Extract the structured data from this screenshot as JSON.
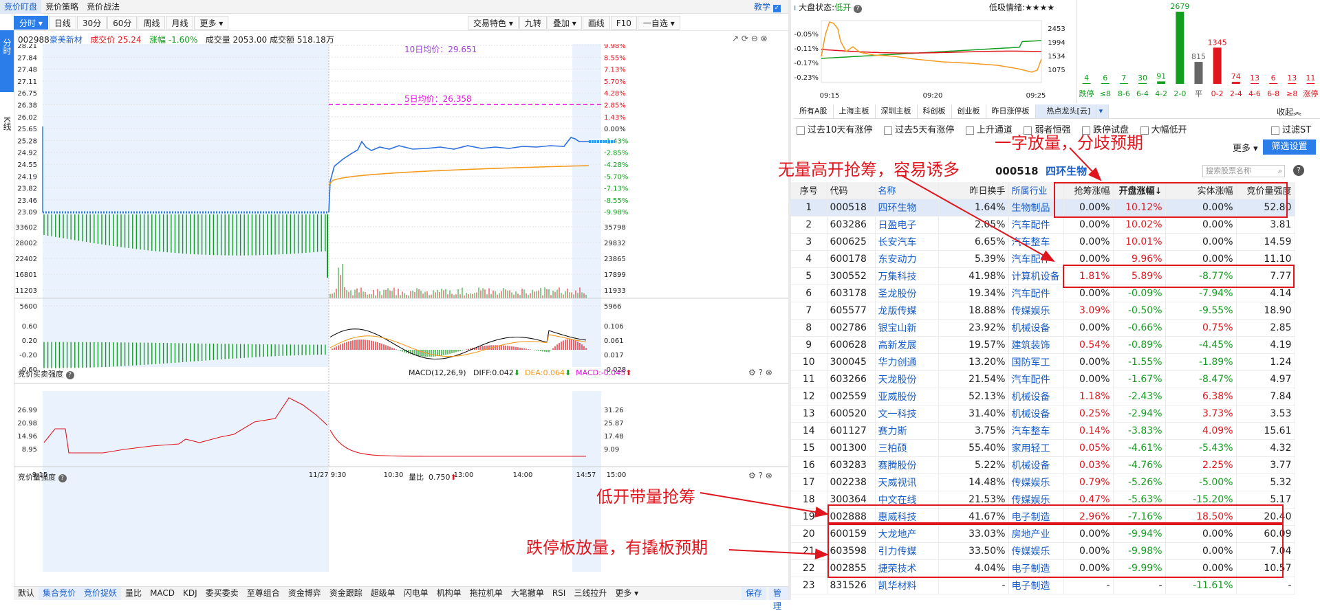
{
  "top_tabs": [
    "竞价盯盘",
    "竞价策略",
    "竞价战法"
  ],
  "teach_label": "教学",
  "vtabs": [
    "分时",
    "K线"
  ],
  "toolbar": {
    "left": [
      "分时",
      "日线",
      "30分",
      "60分",
      "周线",
      "月线",
      "更多"
    ],
    "right": [
      "交易特色",
      "九转",
      "叠加",
      "画线",
      "F10",
      "一自选"
    ]
  },
  "stock": {
    "code": "002988",
    "name": "豪美新材",
    "price_label": "成交价",
    "price": "25.24",
    "chg_label": "涨幅",
    "chg": "-1.60%",
    "vol_label": "成交量",
    "vol": "2053.00",
    "amt_label": "成交额",
    "amt": "518.18万"
  },
  "price_axis_left": [
    "28.21",
    "27.84",
    "27.48",
    "27.11",
    "26.75",
    "26.38",
    "26.02",
    "25.65",
    "25.28",
    "24.92",
    "24.55",
    "24.19",
    "23.82",
    "23.46",
    "23.09"
  ],
  "price_axis_right": [
    "9.98%",
    "8.55%",
    "7.13%",
    "5.70%",
    "4.28%",
    "2.85%",
    "1.43%",
    "0.00%",
    "-1.43%",
    "-2.85%",
    "-4.28%",
    "-5.70%",
    "-7.13%",
    "-8.55%",
    "-9.98%"
  ],
  "vol_axis_left": [
    "33602",
    "28002",
    "22402",
    "16801",
    "11203",
    "5600"
  ],
  "vol_axis_right": [
    "35798",
    "29832",
    "23865",
    "17899",
    "11933",
    "5966"
  ],
  "ma10": "10日均价：29.651",
  "ma5": "5日均价：26.358",
  "panel2": {
    "title": "竞价买卖强度",
    "macd": "MACD(12,26,9)",
    "diff": "DIFF:0.042",
    "dea": "DEA:0.064",
    "macdv": "MACD:-0.045",
    "left_ticks": [
      "0.60",
      "0.20",
      "-0.20",
      "-0.60"
    ],
    "right_ticks": [
      "0.106",
      "0.061",
      "0.017",
      "-0.028"
    ]
  },
  "panel3": {
    "title": "竞价量强度",
    "lb": "量比",
    "lbv": "0.750",
    "left_ticks": [
      "26.99",
      "20.98",
      "14.96",
      "8.95"
    ],
    "right_ticks": [
      "31.26",
      "25.87",
      "17.48",
      "9.09"
    ]
  },
  "time_axis": [
    "9:15",
    "11/27 9:30",
    "10:30",
    "13:00",
    "14:00",
    "14:57",
    "15:00"
  ],
  "bottom_tabs": [
    "默认",
    "集合竞价",
    "竞价捉妖",
    "量比",
    "MACD",
    "KDJ",
    "委买委卖",
    "至尊组合",
    "资金博弈",
    "资金跟踪",
    "超级单",
    "闪电单",
    "机构单",
    "拖拉机单",
    "大笔撤单",
    "RSI",
    "三线拉升",
    "更多"
  ],
  "bottom_right": [
    "保存",
    "管理"
  ],
  "market": {
    "label": "大盘状态:",
    "status": "低开",
    "mood_label": "低吸情绪:",
    "mood": "★★★★",
    "left_ticks": [
      "-0.05%",
      "-0.11%",
      "-0.17%",
      "-0.23%"
    ],
    "right_ticks": [
      "2453",
      "1994",
      "1534",
      "1075"
    ],
    "times": [
      "09:15",
      "09:20",
      "09:25"
    ]
  },
  "dist": {
    "values": [
      "4",
      "6",
      "7",
      "30",
      "91",
      "2679",
      "815",
      "1345",
      "74",
      "13",
      "6",
      "13",
      "11"
    ],
    "labels": [
      "跌停",
      "≤8",
      "8-6",
      "6-4",
      "4-2",
      "2-0",
      "平",
      "0-2",
      "2-4",
      "4-6",
      "6-8",
      "≥8",
      "涨停"
    ],
    "bars": [
      4,
      6,
      7,
      30,
      91,
      2679,
      815,
      1345,
      74,
      13,
      6,
      13,
      11
    ]
  },
  "filter_tabs": [
    "所有A股",
    "上海主板",
    "深圳主板",
    "科创板",
    "创业板",
    "昨日涨停板",
    "热点龙头[云]"
  ],
  "collapse": "收起",
  "checks": [
    "过去10天有涨停",
    "过去5天有涨停",
    "上升通道",
    "弱者恒强",
    "跌停试盘",
    "大幅低开",
    "过滤ST"
  ],
  "more_label": "更多",
  "filter_btn": "筛选设置",
  "selected": {
    "code": "000518",
    "name": "四环生物"
  },
  "search_placeholder": "搜索股票名称",
  "table_headers": [
    "序号",
    "代码",
    "名称",
    "昨日换手",
    "所属行业",
    "抢筹涨幅",
    "开盘涨幅↓",
    "实体涨幅",
    "竞价量强度"
  ],
  "rows": [
    [
      "1",
      "000518",
      "四环生物",
      "1.64%",
      "生物制品",
      "0.00%",
      "10.12%",
      "0.00%",
      "52.80"
    ],
    [
      "2",
      "603286",
      "日盈电子",
      "2.05%",
      "汽车配件",
      "0.00%",
      "10.02%",
      "0.00%",
      "3.81"
    ],
    [
      "3",
      "600625",
      "长安汽车",
      "6.65%",
      "汽车整车",
      "0.00%",
      "10.01%",
      "0.00%",
      "14.59"
    ],
    [
      "4",
      "600178",
      "东安动力",
      "5.39%",
      "汽车配件",
      "0.00%",
      "9.96%",
      "0.00%",
      "11.10"
    ],
    [
      "5",
      "300552",
      "万集科技",
      "41.98%",
      "计算机设备",
      "1.81%",
      "5.89%",
      "-8.77%",
      "7.77"
    ],
    [
      "6",
      "603178",
      "圣龙股份",
      "19.34%",
      "汽车配件",
      "0.00%",
      "-0.09%",
      "-7.94%",
      "4.14"
    ],
    [
      "7",
      "605577",
      "龙版传媒",
      "18.88%",
      "传媒娱乐",
      "3.09%",
      "-0.50%",
      "-9.55%",
      "18.90"
    ],
    [
      "8",
      "002786",
      "银宝山新",
      "23.92%",
      "机械设备",
      "0.00%",
      "-0.66%",
      "0.75%",
      "2.85"
    ],
    [
      "9",
      "600628",
      "高新发展",
      "19.57%",
      "建筑装饰",
      "0.54%",
      "-0.89%",
      "-4.45%",
      "4.19"
    ],
    [
      "10",
      "300045",
      "华力创通",
      "13.20%",
      "国防军工",
      "0.00%",
      "-1.55%",
      "-1.89%",
      "1.24"
    ],
    [
      "11",
      "603266",
      "天龙股份",
      "21.54%",
      "汽车配件",
      "0.00%",
      "-1.67%",
      "-8.47%",
      "4.97"
    ],
    [
      "12",
      "002559",
      "亚威股份",
      "52.13%",
      "机械设备",
      "1.18%",
      "-2.43%",
      "6.38%",
      "7.84"
    ],
    [
      "13",
      "600520",
      "文一科技",
      "31.40%",
      "机械设备",
      "0.25%",
      "-2.94%",
      "3.73%",
      "3.53"
    ],
    [
      "14",
      "601127",
      "赛力斯",
      "3.75%",
      "汽车整车",
      "0.14%",
      "-3.83%",
      "4.09%",
      "15.61"
    ],
    [
      "15",
      "001300",
      "三柏硕",
      "55.40%",
      "家用轻工",
      "0.05%",
      "-4.61%",
      "-5.43%",
      "4.32"
    ],
    [
      "16",
      "603283",
      "赛腾股份",
      "5.22%",
      "机械设备",
      "0.03%",
      "-4.76%",
      "2.25%",
      "3.77"
    ],
    [
      "17",
      "002238",
      "天威视讯",
      "14.48%",
      "传媒娱乐",
      "0.79%",
      "-5.26%",
      "-5.00%",
      "5.32"
    ],
    [
      "18",
      "300364",
      "中文在线",
      "21.53%",
      "传媒娱乐",
      "0.47%",
      "-5.63%",
      "-15.20%",
      "5.17"
    ],
    [
      "19",
      "002888",
      "惠威科技",
      "41.67%",
      "电子制造",
      "2.96%",
      "-7.16%",
      "18.50%",
      "20.40"
    ],
    [
      "20",
      "600159",
      "大龙地产",
      "33.03%",
      "房地产业",
      "0.00%",
      "-9.94%",
      "0.00%",
      "60.09"
    ],
    [
      "21",
      "603598",
      "引力传媒",
      "33.50%",
      "传媒娱乐",
      "0.00%",
      "-9.98%",
      "0.00%",
      "7.04"
    ],
    [
      "22",
      "002855",
      "捷荣技术",
      "4.04%",
      "电子制造",
      "0.00%",
      "-9.99%",
      "0.00%",
      "10.57"
    ],
    [
      "23",
      "831526",
      "凯华材料",
      "-",
      "电子制造",
      "-",
      "-",
      "-11.61%",
      "-"
    ]
  ],
  "annotations": [
    "一字放量，分歧预期",
    "无量高开抢筹，容易诱多",
    "低开带量抢筹",
    "跌停板放量，有撬板预期"
  ]
}
